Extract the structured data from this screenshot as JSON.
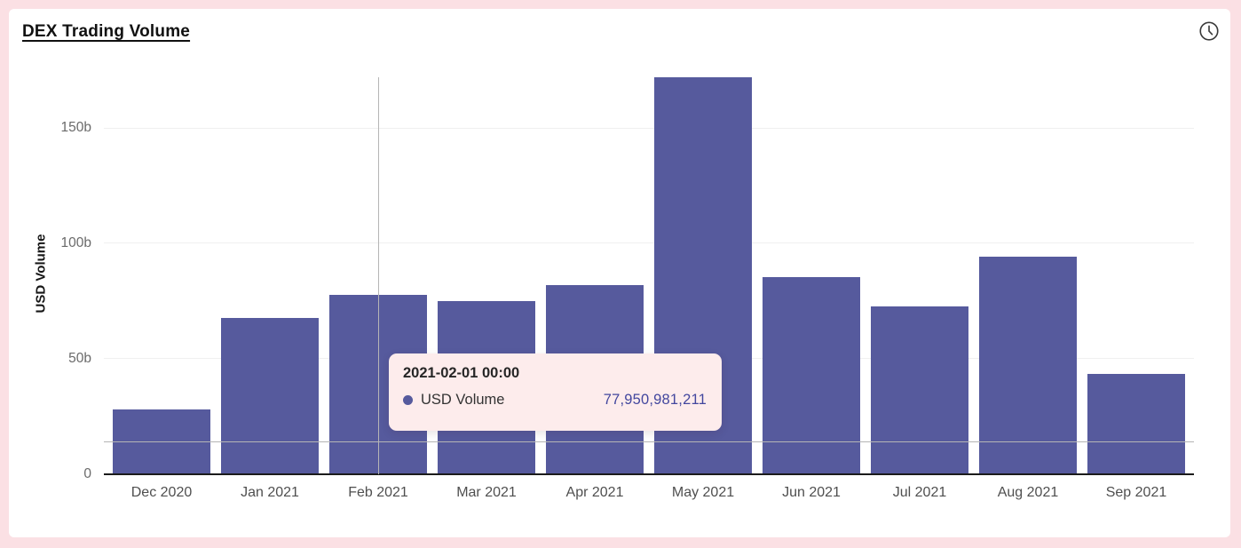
{
  "header": {
    "title": "DEX Trading Volume"
  },
  "chart_data": {
    "type": "bar",
    "title": "DEX Trading Volume",
    "series_name": "USD Volume",
    "xlabel": "",
    "ylabel": "USD Volume",
    "categories": [
      "Dec 2020",
      "Jan 2021",
      "Feb 2021",
      "Mar 2021",
      "Apr 2021",
      "May 2021",
      "Jun 2021",
      "Jul 2021",
      "Aug 2021",
      "Sep 2021"
    ],
    "values_billions": [
      28,
      67.7,
      77.95,
      75,
      82,
      172.3,
      85.4,
      73,
      94.3,
      43.5
    ],
    "ylim_billions": [
      0,
      173
    ],
    "yticks": [
      {
        "value": 0,
        "label": "0"
      },
      {
        "value": 50,
        "label": "50b"
      },
      {
        "value": 100,
        "label": "100b"
      },
      {
        "value": 150,
        "label": "150b"
      }
    ],
    "grid": true,
    "legend_position": "none"
  },
  "tooltip": {
    "date": "2021-02-01 00:00",
    "series_label": "USD Volume",
    "value": "77,950,981,211"
  },
  "crosshair": {
    "category": "Feb 2021",
    "category_index": 2,
    "pointer_value_billions": 14
  },
  "colors": {
    "page_bg": "#fbe0e4",
    "card_bg": "#ffffff",
    "bar": "#565a9d",
    "tooltip_bg": "#fdecec",
    "tooltip_value": "#43479e",
    "axis": "#1b1b1b",
    "grid": "#f0f0f0",
    "crosshair": "#b5b5b5",
    "tick_text": "#6a6a6a"
  }
}
